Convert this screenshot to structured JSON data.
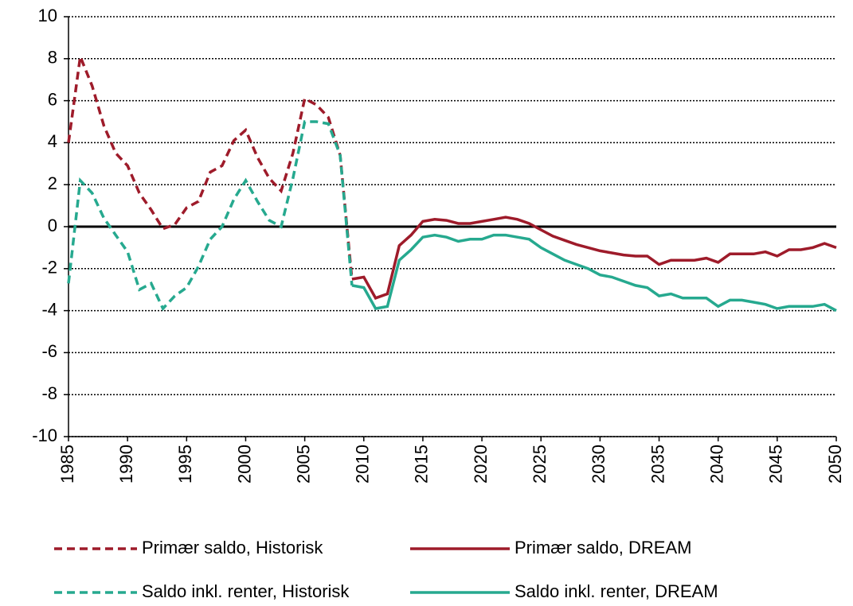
{
  "chart_data": {
    "type": "line",
    "x": [
      1985,
      1986,
      1987,
      1988,
      1989,
      1990,
      1991,
      1992,
      1993,
      1994,
      1995,
      1996,
      1997,
      1998,
      1999,
      2000,
      2001,
      2002,
      2003,
      2004,
      2005,
      2006,
      2007,
      2008,
      2009,
      2010,
      2011,
      2012,
      2013,
      2014,
      2015,
      2016,
      2017,
      2018,
      2019,
      2020,
      2021,
      2022,
      2023,
      2024,
      2025,
      2026,
      2027,
      2028,
      2029,
      2030,
      2031,
      2032,
      2033,
      2034,
      2035,
      2036,
      2037,
      2038,
      2039,
      2040,
      2041,
      2042,
      2043,
      2044,
      2045,
      2046,
      2047,
      2048,
      2049,
      2050
    ],
    "series": [
      {
        "name": "Primær saldo, Historisk",
        "color": "#9e1b2a",
        "dash": true,
        "values": [
          4.0,
          8.1,
          6.7,
          4.8,
          3.5,
          2.9,
          1.6,
          0.8,
          -0.1,
          0.1,
          0.9,
          1.2,
          2.6,
          2.9,
          4.1,
          4.6,
          3.3,
          2.3,
          1.7,
          3.5,
          6.1,
          5.8,
          5.2,
          3.4,
          -2.5,
          null,
          null,
          null,
          null,
          null,
          null,
          null,
          null,
          null,
          null,
          null,
          null,
          null,
          null,
          null,
          null,
          null,
          null,
          null,
          null,
          null,
          null,
          null,
          null,
          null,
          null,
          null,
          null,
          null,
          null,
          null,
          null,
          null,
          null,
          null,
          null,
          null,
          null,
          null,
          null,
          null
        ]
      },
      {
        "name": "Primær saldo, DREAM",
        "color": "#9e1b2a",
        "dash": false,
        "values": [
          null,
          null,
          null,
          null,
          null,
          null,
          null,
          null,
          null,
          null,
          null,
          null,
          null,
          null,
          null,
          null,
          null,
          null,
          null,
          null,
          null,
          null,
          null,
          null,
          -2.5,
          -2.4,
          -3.4,
          -3.2,
          -0.9,
          -0.4,
          0.25,
          0.35,
          0.3,
          0.15,
          0.15,
          0.25,
          0.35,
          0.45,
          0.35,
          0.15,
          -0.15,
          -0.45,
          -0.65,
          -0.85,
          -1.0,
          -1.15,
          -1.25,
          -1.35,
          -1.4,
          -1.4,
          -1.8,
          -1.6,
          -1.6,
          -1.6,
          -1.5,
          -1.7,
          -1.3,
          -1.3,
          -1.3,
          -1.2,
          -1.4,
          -1.1,
          -1.1,
          -1.0,
          -0.8,
          -1.0
        ]
      },
      {
        "name": "Saldo inkl. renter, Historisk",
        "color": "#26a98f",
        "dash": true,
        "values": [
          -2.7,
          2.2,
          1.6,
          0.4,
          -0.4,
          -1.2,
          -3.0,
          -2.7,
          -3.9,
          -3.3,
          -2.9,
          -1.9,
          -0.6,
          0.0,
          1.3,
          2.2,
          1.2,
          0.3,
          0.0,
          2.3,
          5.0,
          5.0,
          4.9,
          3.4,
          -2.8,
          null,
          null,
          null,
          null,
          null,
          null,
          null,
          null,
          null,
          null,
          null,
          null,
          null,
          null,
          null,
          null,
          null,
          null,
          null,
          null,
          null,
          null,
          null,
          null,
          null,
          null,
          null,
          null,
          null,
          null,
          null,
          null,
          null,
          null,
          null,
          null,
          null,
          null,
          null,
          null,
          null
        ]
      },
      {
        "name": "Saldo inkl. renter, DREAM",
        "color": "#26a98f",
        "dash": false,
        "values": [
          null,
          null,
          null,
          null,
          null,
          null,
          null,
          null,
          null,
          null,
          null,
          null,
          null,
          null,
          null,
          null,
          null,
          null,
          null,
          null,
          null,
          null,
          null,
          null,
          -2.8,
          -2.9,
          -3.9,
          -3.8,
          -1.6,
          -1.1,
          -0.5,
          -0.4,
          -0.5,
          -0.7,
          -0.6,
          -0.6,
          -0.4,
          -0.4,
          -0.5,
          -0.6,
          -1.0,
          -1.3,
          -1.6,
          -1.8,
          -2.0,
          -2.3,
          -2.4,
          -2.6,
          -2.8,
          -2.9,
          -3.3,
          -3.2,
          -3.4,
          -3.4,
          -3.4,
          -3.8,
          -3.5,
          -3.5,
          -3.6,
          -3.7,
          -3.9,
          -3.8,
          -3.8,
          -3.8,
          -3.7,
          -4.0
        ]
      }
    ],
    "xlim": [
      1985,
      2050
    ],
    "xticks": [
      1985,
      1990,
      1995,
      2000,
      2005,
      2010,
      2015,
      2020,
      2025,
      2030,
      2035,
      2040,
      2045,
      2050
    ],
    "ylim": [
      -10,
      10
    ],
    "yticks": [
      -10,
      -8,
      -6,
      -4,
      -2,
      0,
      2,
      4,
      6,
      8,
      10
    ],
    "grid": true
  }
}
